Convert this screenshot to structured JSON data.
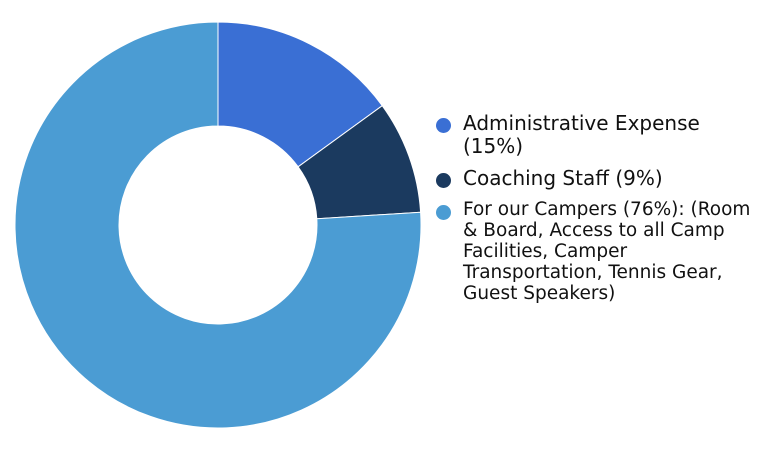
{
  "chart_data": {
    "type": "pie",
    "donut": true,
    "title": "",
    "legend_position": "right",
    "slices": [
      {
        "label": "Administrative Expense (15%)",
        "value": 15,
        "color": "#3a6fd4"
      },
      {
        "label": "Coaching Staff (9%)",
        "value": 9,
        "color": "#1b3a5f"
      },
      {
        "label": "For our Campers (76%): (Room & Board, Access to all Camp Facilities, Camper Transportation, Tennis Gear, Guest Speakers)",
        "value": 76,
        "color": "#4b9cd3"
      }
    ]
  }
}
